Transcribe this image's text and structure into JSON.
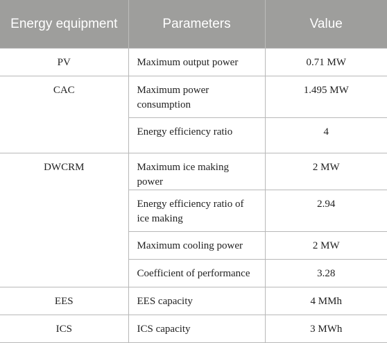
{
  "table": {
    "headers": {
      "equipment": "Energy equipment",
      "parameters": "Parameters",
      "value": "Value"
    },
    "rows": [
      {
        "equipment": "PV",
        "parameter": "Maximum output power",
        "value": "0.71 MW"
      },
      {
        "equipment": "CAC",
        "parameter": "Maximum power consumption",
        "value": "1.495 MW"
      },
      {
        "equipment": "",
        "parameter": "Energy efficiency ratio",
        "value": "4"
      },
      {
        "equipment": "DWCRM",
        "parameter": "Maximum ice making power",
        "value": "2 MW"
      },
      {
        "equipment": "",
        "parameter": "Energy efficiency ratio of ice making",
        "value": "2.94"
      },
      {
        "equipment": "",
        "parameter": "Maximum cooling power",
        "value": "2 MW"
      },
      {
        "equipment": "",
        "parameter": "Coefficient of performance",
        "value": "3.28"
      },
      {
        "equipment": "EES",
        "parameter": "EES capacity",
        "value": "4 MMh"
      },
      {
        "equipment": "ICS",
        "parameter": "ICS capacity",
        "value": "3 MWh"
      }
    ]
  }
}
